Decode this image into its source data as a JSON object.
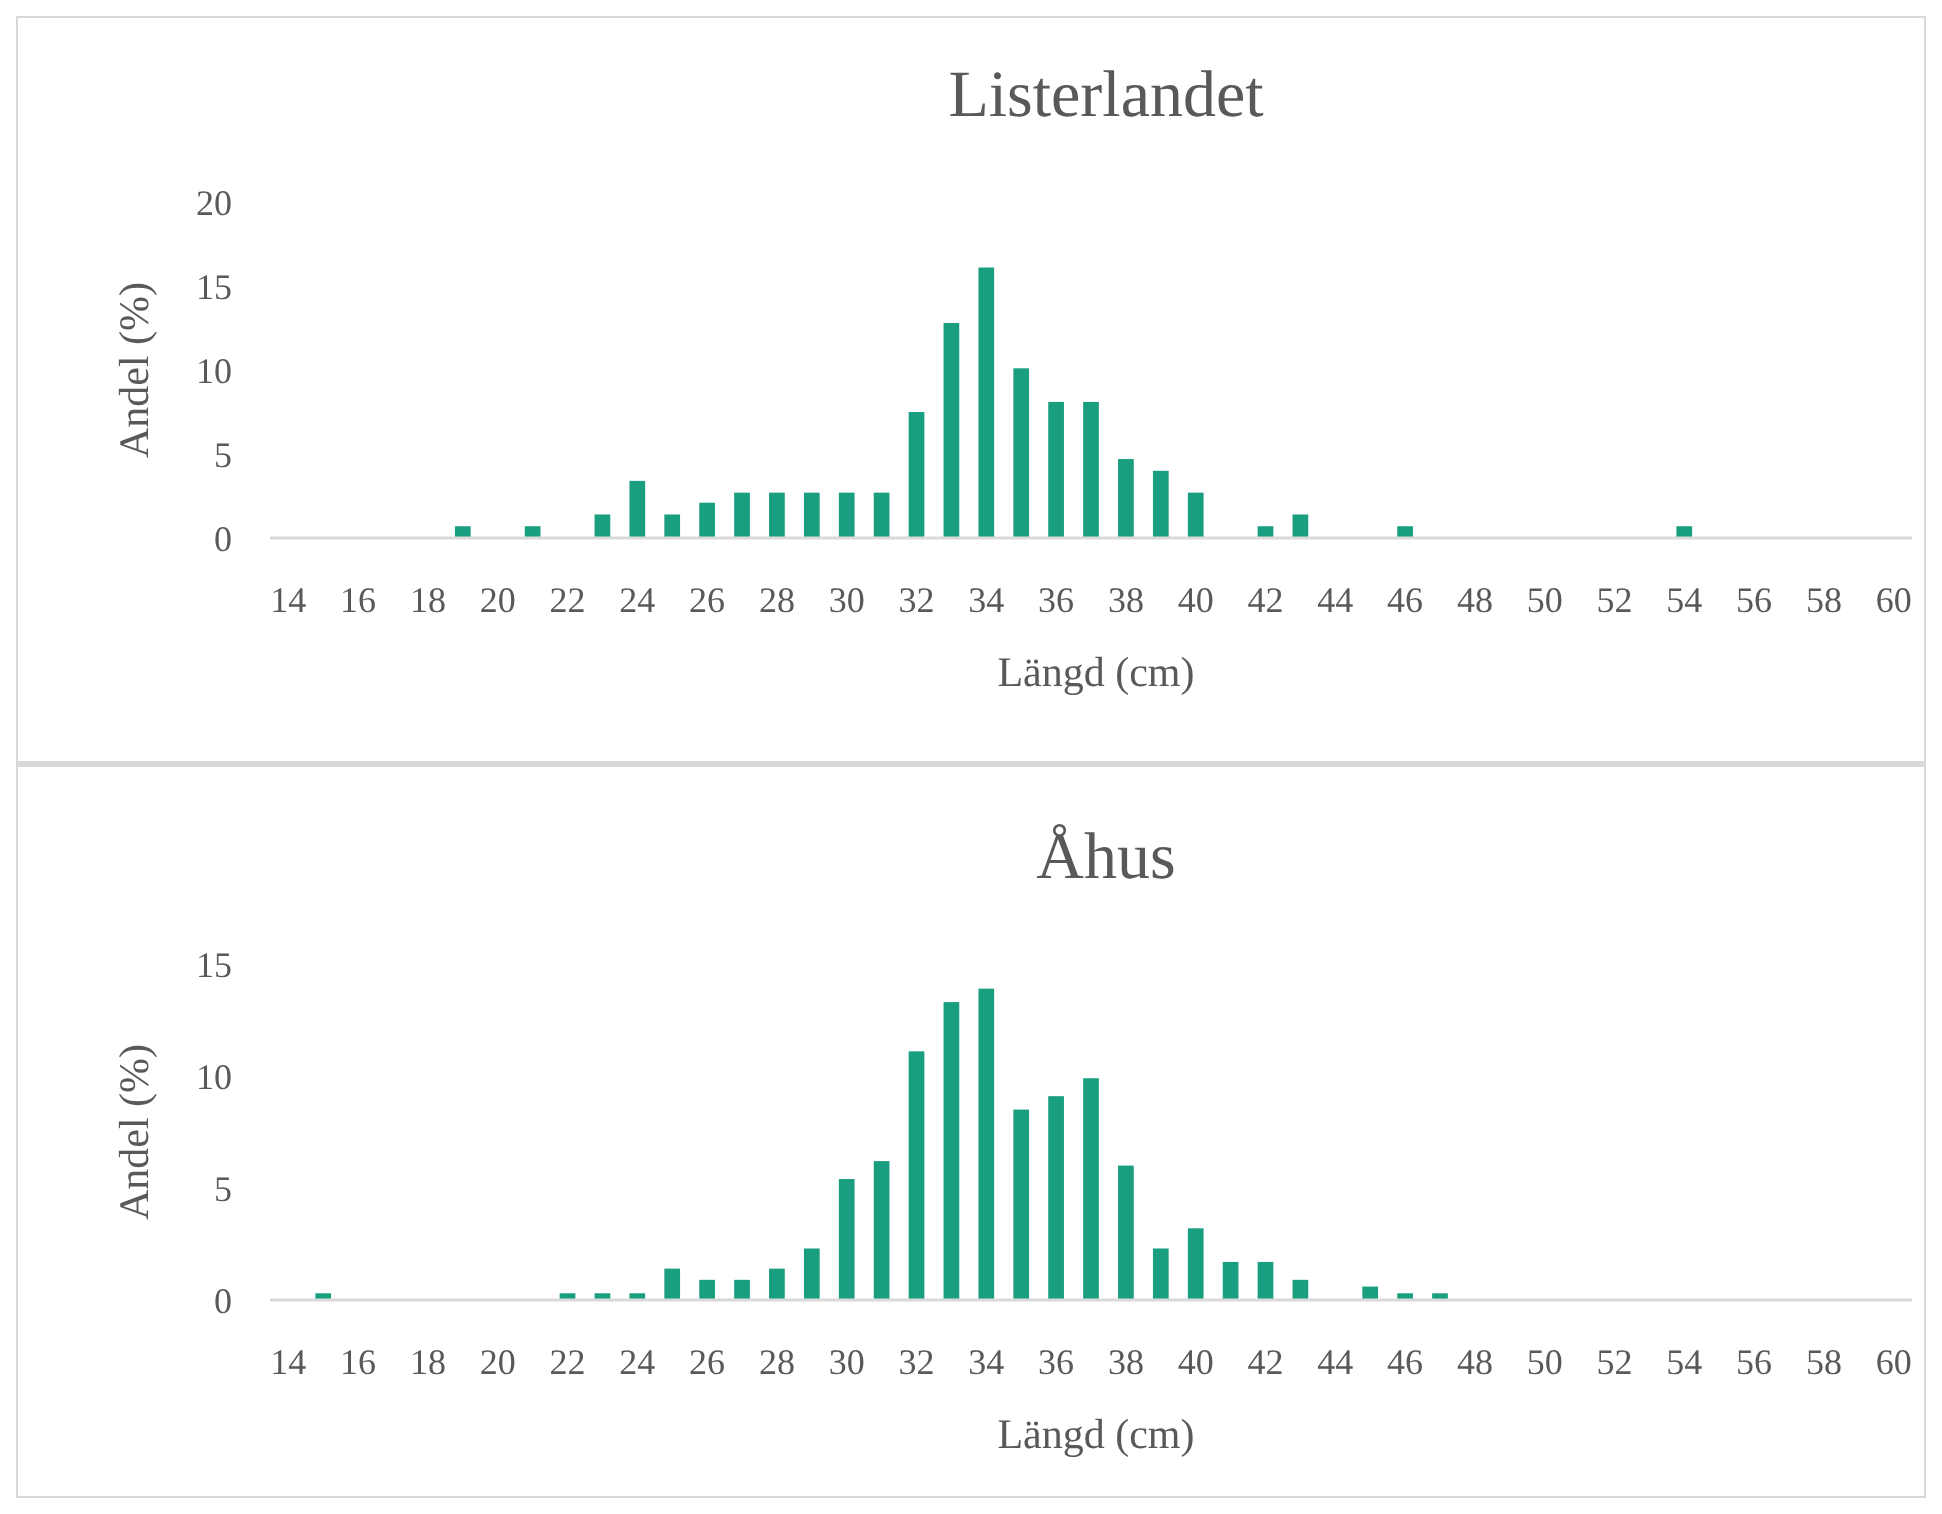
{
  "chart_data": [
    {
      "type": "bar",
      "title": "Listerlandet",
      "xlabel": "Längd (cm)",
      "ylabel": "Andel (%)",
      "categories": [
        "14",
        null,
        "16",
        null,
        "18",
        null,
        "20",
        null,
        "22",
        null,
        "24",
        null,
        "26",
        null,
        "28",
        null,
        "30",
        null,
        "32",
        null,
        "34",
        null,
        "36",
        null,
        "38",
        null,
        "40",
        null,
        "42",
        null,
        "44",
        null,
        "46",
        null,
        "48",
        null,
        "50",
        null,
        "52",
        null,
        "54",
        null,
        "56",
        null,
        "58",
        null,
        "60"
      ],
      "values": [
        0,
        0,
        0,
        0,
        0,
        0.7,
        0,
        0.7,
        0,
        1.4,
        3.4,
        1.4,
        2.1,
        2.7,
        2.7,
        2.7,
        2.7,
        2.7,
        7.5,
        12.8,
        16.1,
        10.1,
        8.1,
        8.1,
        4.7,
        4.0,
        2.7,
        0,
        0.7,
        1.4,
        0,
        0,
        0.7,
        0,
        0,
        0,
        0,
        0,
        0,
        0,
        0.7,
        0,
        0,
        0,
        0,
        0,
        0
      ],
      "color": "#1a9e80",
      "ylim": [
        0,
        20
      ],
      "yticks": [
        0,
        5,
        10,
        15,
        20
      ],
      "grid": false
    },
    {
      "type": "bar",
      "title": "Åhus",
      "xlabel": "Längd (cm)",
      "ylabel": "Andel (%)",
      "categories": [
        "14",
        null,
        "16",
        null,
        "18",
        null,
        "20",
        null,
        "22",
        null,
        "24",
        null,
        "26",
        null,
        "28",
        null,
        "30",
        null,
        "32",
        null,
        "34",
        null,
        "36",
        null,
        "38",
        null,
        "40",
        null,
        "42",
        null,
        "44",
        null,
        "46",
        null,
        "48",
        null,
        "50",
        null,
        "52",
        null,
        "54",
        null,
        "56",
        null,
        "58",
        null,
        "60"
      ],
      "values": [
        0,
        0.3,
        0,
        0,
        0,
        0,
        0,
        0,
        0.3,
        0.3,
        0.3,
        1.4,
        0.9,
        0.9,
        1.4,
        2.3,
        5.4,
        6.2,
        11.1,
        13.3,
        13.9,
        8.5,
        9.1,
        9.9,
        6.0,
        2.3,
        3.2,
        1.7,
        1.7,
        0.9,
        0,
        0.6,
        0.3,
        0.3,
        0,
        0,
        0,
        0,
        0,
        0,
        0,
        0,
        0,
        0,
        0,
        0,
        0
      ],
      "color": "#1a9e80",
      "ylim": [
        0,
        15
      ],
      "yticks": [
        0,
        5,
        10,
        15
      ],
      "grid": false
    }
  ]
}
